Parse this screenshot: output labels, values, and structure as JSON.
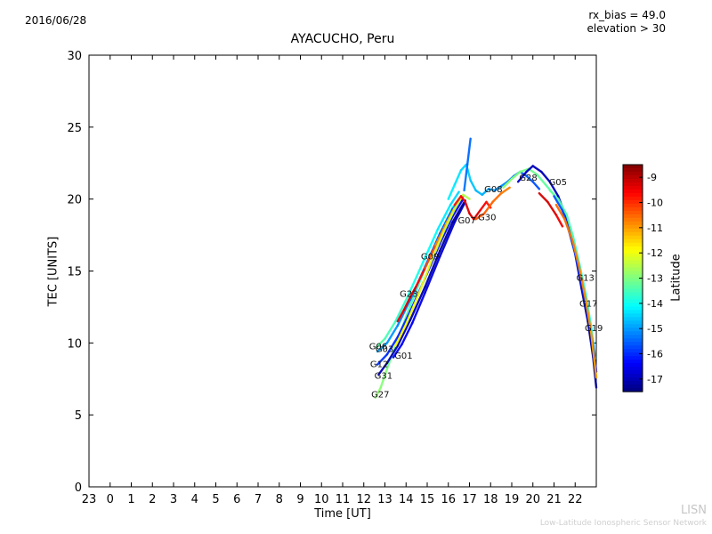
{
  "header": {
    "date": "2016/06/28",
    "rx_bias": "rx_bias = 49.0",
    "elevation": "elevation > 30"
  },
  "watermark": {
    "short": "LISN",
    "long": "Low-Latitude Ionospheric Sensor Network"
  },
  "chart_data": {
    "type": "line",
    "title": "AYACUCHO, Peru",
    "xlabel": "Time [UT]",
    "ylabel": "TEC [UNITS]",
    "xtick_labels": [
      "23",
      "0",
      "1",
      "2",
      "3",
      "4",
      "5",
      "6",
      "7",
      "8",
      "9",
      "10",
      "11",
      "12",
      "13",
      "14",
      "15",
      "16",
      "17",
      "18",
      "19",
      "20",
      "21",
      "22"
    ],
    "yticks": [
      0,
      5,
      10,
      15,
      20,
      25,
      30
    ],
    "ylim": [
      0,
      30
    ],
    "x_hours_span": 24,
    "colorbar": {
      "label": "Latitude",
      "ticks": [
        -9,
        -10,
        -11,
        -12,
        -13,
        -14,
        -15,
        -16,
        -17
      ],
      "vmin": -17.5,
      "vmax": -8.5,
      "colormap": "jet"
    },
    "series": [
      {
        "name": "G27",
        "points": [
          [
            12.55,
            6.2,
            -12.8
          ],
          [
            12.8,
            6.9,
            -12.9
          ],
          [
            13.1,
            8.2,
            -13.0
          ],
          [
            13.6,
            10.2,
            -13.2
          ],
          [
            14.2,
            12.6,
            -13.4
          ],
          [
            14.9,
            15.2,
            -13.6
          ],
          [
            15.6,
            17.6,
            -13.8
          ],
          [
            16.2,
            19.4,
            -14.0
          ],
          [
            16.6,
            20.2,
            -14.1
          ]
        ]
      },
      {
        "name": "G06",
        "points": [
          [
            12.6,
            9.7,
            -13.2
          ],
          [
            13.0,
            10.3,
            -13.4
          ],
          [
            13.5,
            11.5,
            -13.6
          ],
          [
            14.1,
            13.3,
            -13.8
          ],
          [
            14.8,
            15.6,
            -14.0
          ],
          [
            15.5,
            17.9,
            -14.2
          ],
          [
            16.1,
            19.6,
            -14.4
          ],
          [
            16.5,
            20.5,
            -14.5
          ]
        ]
      },
      {
        "name": "G03",
        "points": [
          [
            12.65,
            9.4,
            -14.8
          ],
          [
            13.1,
            10.0,
            -15.0
          ],
          [
            13.6,
            11.2,
            -15.1
          ],
          [
            14.2,
            13.0,
            -15.3
          ],
          [
            14.9,
            15.3,
            -15.4
          ],
          [
            15.6,
            17.6,
            -15.6
          ],
          [
            16.2,
            19.3,
            -15.7
          ],
          [
            16.7,
            20.2,
            -15.8
          ]
        ]
      },
      {
        "name": "G01",
        "points": [
          [
            13.4,
            9.0,
            -16.3
          ],
          [
            13.8,
            9.9,
            -16.4
          ],
          [
            14.3,
            11.4,
            -16.5
          ],
          [
            14.9,
            13.5,
            -16.6
          ],
          [
            15.6,
            16.0,
            -16.7
          ],
          [
            16.3,
            18.4,
            -16.8
          ],
          [
            16.8,
            19.8,
            -16.9
          ]
        ]
      },
      {
        "name": "G12",
        "points": [
          [
            12.65,
            8.5,
            -15.9
          ],
          [
            13.1,
            9.2,
            -16.0
          ],
          [
            13.6,
            10.4,
            -16.0
          ],
          [
            14.2,
            12.2,
            -16.1
          ],
          [
            14.9,
            14.5,
            -16.2
          ],
          [
            15.6,
            16.9,
            -16.3
          ],
          [
            16.2,
            18.8,
            -16.4
          ],
          [
            16.7,
            20.0,
            -16.5
          ]
        ]
      },
      {
        "name": "G31",
        "points": [
          [
            12.7,
            7.8,
            -17.0
          ],
          [
            13.1,
            8.6,
            -17.0
          ],
          [
            13.6,
            9.8,
            -17.1
          ],
          [
            14.2,
            11.6,
            -17.1
          ],
          [
            14.9,
            13.9,
            -17.2
          ],
          [
            15.6,
            16.4,
            -17.2
          ],
          [
            16.2,
            18.4,
            -17.3
          ],
          [
            16.8,
            19.9,
            -17.3
          ]
        ]
      },
      {
        "name": "G23",
        "points": [
          [
            13.6,
            11.5,
            -9.5
          ],
          [
            13.9,
            12.3,
            -9.3
          ],
          [
            14.2,
            13.2,
            -9.2
          ],
          [
            14.5,
            14.0,
            -9.4
          ],
          [
            14.9,
            15.2,
            -10.0
          ],
          [
            15.4,
            16.8,
            -10.6
          ],
          [
            15.9,
            18.3,
            -11.0
          ],
          [
            16.3,
            19.4,
            -11.3
          ]
        ]
      },
      {
        "name": "G09",
        "points": [
          [
            13.5,
            9.8,
            -11.8
          ],
          [
            14.0,
            11.3,
            -11.9
          ],
          [
            14.6,
            13.4,
            -12.0
          ],
          [
            15.2,
            15.7,
            -12.1
          ],
          [
            15.8,
            17.8,
            -12.3
          ],
          [
            16.3,
            19.3,
            -12.4
          ],
          [
            16.7,
            20.3,
            -12.5
          ],
          [
            17.0,
            20.0,
            -12.6
          ]
        ]
      },
      {
        "name": "G07",
        "points": [
          [
            16.3,
            19.6,
            -9.9
          ],
          [
            16.6,
            20.2,
            -9.7
          ],
          [
            16.8,
            19.8,
            -9.5
          ],
          [
            17.0,
            19.0,
            -9.3
          ],
          [
            17.2,
            18.6,
            -9.2
          ],
          [
            17.5,
            19.2,
            -9.4
          ],
          [
            17.8,
            19.8,
            -9.7
          ],
          [
            18.0,
            19.4,
            -9.9
          ]
        ]
      },
      {
        "name": "G30",
        "points": [
          [
            17.3,
            18.6,
            -10.3
          ],
          [
            17.7,
            19.0,
            -10.4
          ],
          [
            18.1,
            19.8,
            -10.5
          ],
          [
            18.5,
            20.4,
            -10.6
          ],
          [
            18.9,
            20.8,
            -10.8
          ]
        ]
      },
      {
        "name": "G08",
        "points": [
          [
            16.0,
            20.0,
            -14.2
          ],
          [
            16.3,
            21.0,
            -14.3
          ],
          [
            16.6,
            22.0,
            -14.4
          ],
          [
            16.85,
            22.4,
            -14.5
          ],
          [
            17.05,
            21.3,
            -14.6
          ],
          [
            17.3,
            20.6,
            -14.7
          ],
          [
            17.6,
            20.3,
            -14.8
          ],
          [
            17.9,
            20.7,
            -14.9
          ],
          [
            18.2,
            20.6,
            -15.0
          ],
          [
            18.5,
            20.9,
            -15.1
          ],
          [
            18.8,
            21.2,
            -15.2
          ],
          [
            19.1,
            21.6,
            -15.3
          ],
          [
            19.4,
            21.9,
            -15.4
          ],
          [
            19.7,
            21.6,
            -15.5
          ],
          [
            20.0,
            21.2,
            -15.6
          ],
          [
            20.3,
            20.7,
            -15.7
          ]
        ]
      },
      {
        "name": "unlabeled-spike",
        "points": [
          [
            16.75,
            20.6,
            -15.3
          ],
          [
            16.9,
            22.4,
            -15.4
          ],
          [
            17.05,
            24.2,
            -15.5
          ]
        ]
      },
      {
        "name": "G28",
        "points": [
          [
            18.6,
            20.8,
            -12.8
          ],
          [
            19.0,
            21.4,
            -12.9
          ],
          [
            19.4,
            21.9,
            -13.0
          ],
          [
            19.8,
            22.1,
            -13.1
          ],
          [
            20.2,
            21.7,
            -13.2
          ],
          [
            20.6,
            21.0,
            -13.3
          ],
          [
            21.0,
            20.3,
            -13.4
          ]
        ]
      },
      {
        "name": "G05",
        "points": [
          [
            19.3,
            21.2,
            -16.8
          ],
          [
            19.7,
            21.9,
            -16.9
          ],
          [
            20.0,
            22.3,
            -17.0
          ],
          [
            20.4,
            21.9,
            -17.0
          ],
          [
            20.8,
            21.2,
            -17.0
          ],
          [
            21.2,
            20.2,
            -16.9
          ],
          [
            21.6,
            18.6,
            -16.9
          ],
          [
            22.0,
            16.2,
            -17.0
          ],
          [
            22.3,
            13.8,
            -17.1
          ],
          [
            22.6,
            11.5,
            -17.2
          ],
          [
            22.85,
            9.0,
            -17.3
          ],
          [
            23.0,
            6.9,
            -17.3
          ]
        ]
      },
      {
        "name": "unlabeled-red-descent",
        "points": [
          [
            20.3,
            20.4,
            -9.3
          ],
          [
            20.7,
            19.8,
            -9.2
          ],
          [
            21.1,
            18.9,
            -9.4
          ],
          [
            21.4,
            18.1,
            -9.6
          ]
        ]
      },
      {
        "name": "G13",
        "points": [
          [
            20.8,
            20.6,
            -13.2
          ],
          [
            21.2,
            20.0,
            -13.3
          ],
          [
            21.6,
            18.9,
            -13.4
          ],
          [
            21.9,
            17.4,
            -13.5
          ],
          [
            22.2,
            15.5,
            -13.6
          ],
          [
            22.5,
            13.4,
            -13.7
          ],
          [
            22.75,
            11.2,
            -13.8
          ],
          [
            22.95,
            8.9,
            -13.9
          ]
        ]
      },
      {
        "name": "G17",
        "points": [
          [
            21.0,
            20.2,
            -15.6
          ],
          [
            21.4,
            19.2,
            -15.7
          ],
          [
            21.7,
            17.8,
            -15.8
          ],
          [
            22.0,
            16.2,
            -15.9
          ],
          [
            22.3,
            14.2,
            -16.0
          ],
          [
            22.6,
            12.0,
            -16.0
          ],
          [
            22.85,
            9.8,
            -16.1
          ],
          [
            23.0,
            8.0,
            -16.2
          ]
        ]
      },
      {
        "name": "G19",
        "points": [
          [
            21.1,
            19.6,
            -10.5
          ],
          [
            21.5,
            18.6,
            -10.6
          ],
          [
            21.9,
            17.0,
            -10.7
          ],
          [
            22.2,
            15.2,
            -10.8
          ],
          [
            22.5,
            13.0,
            -10.9
          ],
          [
            22.75,
            10.8,
            -11.0
          ],
          [
            23.0,
            7.6,
            -11.1
          ]
        ]
      }
    ],
    "labels": [
      {
        "text": "G28",
        "t": 19.35,
        "tec": 21.45
      },
      {
        "text": "G05",
        "t": 20.75,
        "tec": 21.15
      },
      {
        "text": "G08",
        "t": 17.7,
        "tec": 20.65
      },
      {
        "text": "G07",
        "t": 16.45,
        "tec": 18.5
      },
      {
        "text": "G30",
        "t": 17.4,
        "tec": 18.7
      },
      {
        "text": "G09",
        "t": 14.7,
        "tec": 16.0
      },
      {
        "text": "G23",
        "t": 13.7,
        "tec": 13.4
      },
      {
        "text": "G13",
        "t": 22.05,
        "tec": 14.5
      },
      {
        "text": "G17",
        "t": 22.2,
        "tec": 12.7
      },
      {
        "text": "G19",
        "t": 22.45,
        "tec": 11.0
      },
      {
        "text": "G06",
        "t": 12.25,
        "tec": 9.75
      },
      {
        "text": "G03",
        "t": 12.55,
        "tec": 9.55
      },
      {
        "text": "G01",
        "t": 13.45,
        "tec": 9.1
      },
      {
        "text": "G12",
        "t": 12.3,
        "tec": 8.5
      },
      {
        "text": "G31",
        "t": 12.5,
        "tec": 7.7
      },
      {
        "text": "G27",
        "t": 12.35,
        "tec": 6.4
      }
    ]
  }
}
